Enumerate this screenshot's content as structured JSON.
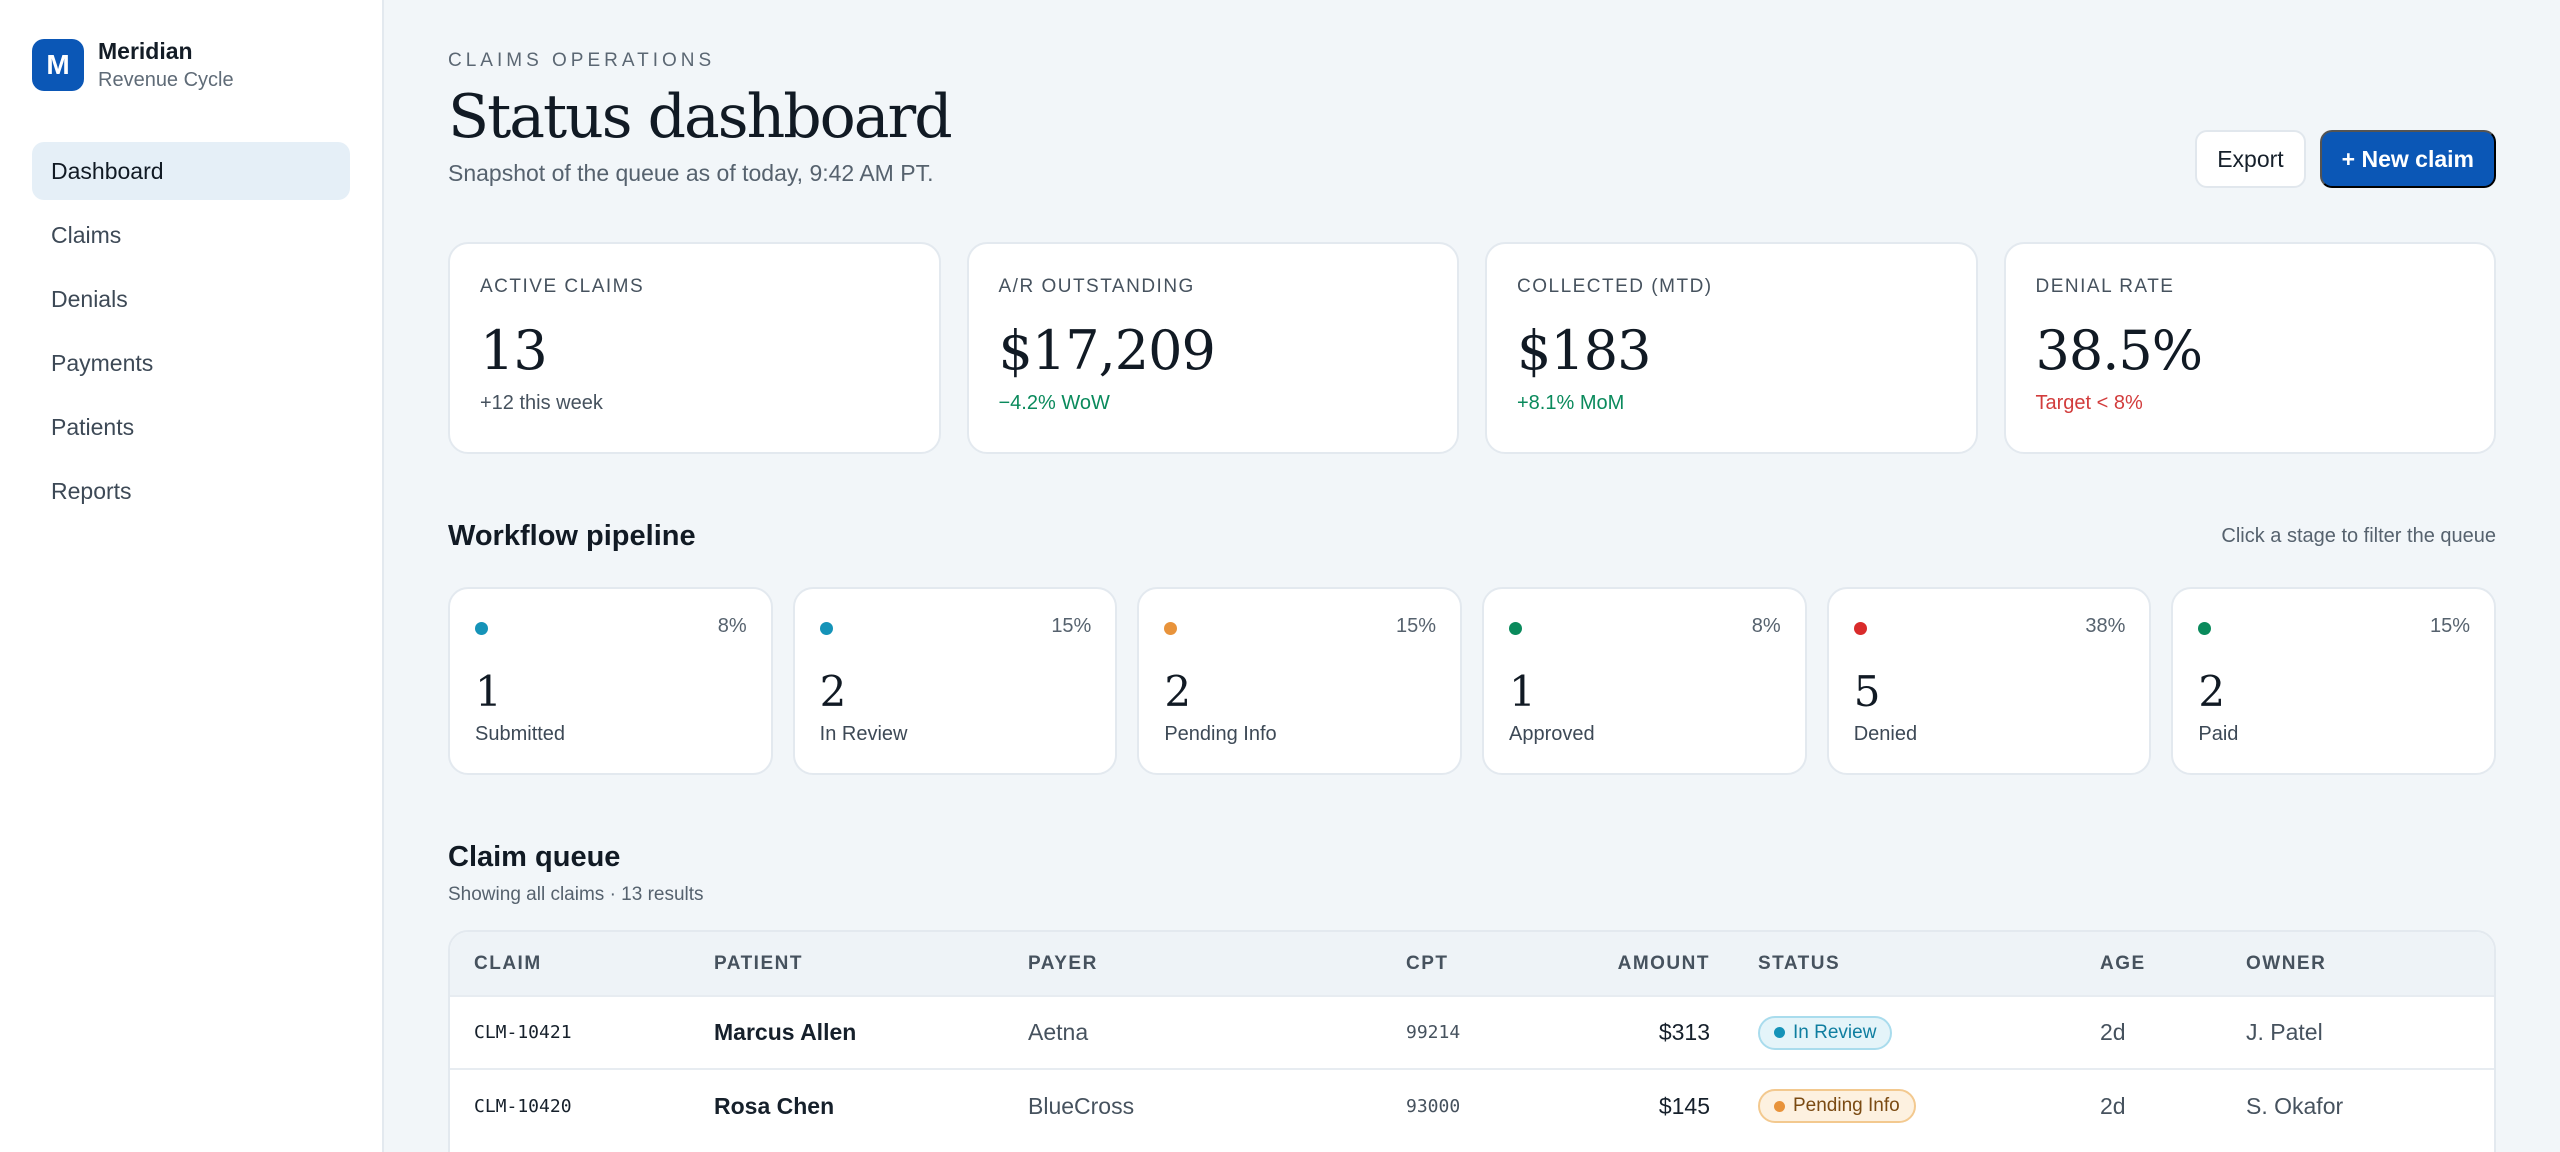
{
  "brand": {
    "initial": "M",
    "name": "Meridian",
    "subtitle": "Revenue Cycle"
  },
  "sidebar": {
    "items": [
      {
        "label": "Dashboard",
        "active": true
      },
      {
        "label": "Claims"
      },
      {
        "label": "Denials"
      },
      {
        "label": "Payments"
      },
      {
        "label": "Patients"
      },
      {
        "label": "Reports"
      }
    ]
  },
  "header": {
    "eyebrow": "CLAIMS OPERATIONS",
    "title": "Status dashboard",
    "subtitle": "Snapshot of the queue as of today, 9:42 AM PT.",
    "export_label": "Export",
    "new_claim_label": "+ New claim"
  },
  "kpis": [
    {
      "label": "ACTIVE CLAIMS",
      "value": "13",
      "delta": "+12 this week",
      "delta_color": "#46525e"
    },
    {
      "label": "A/R OUTSTANDING",
      "value": "$17,209",
      "delta": "−4.2% WoW",
      "delta_color": "#0a8a5c"
    },
    {
      "label": "COLLECTED (MTD)",
      "value": "$183",
      "delta": "+8.1% MoM",
      "delta_color": "#0a8a5c"
    },
    {
      "label": "DENIAL RATE",
      "value": "38.5%",
      "delta": "Target < 8%",
      "delta_color": "#d23c3c"
    }
  ],
  "pipeline": {
    "title": "Workflow pipeline",
    "hint": "Click a stage to filter the queue",
    "stages": [
      {
        "label": "Submitted",
        "count": "1",
        "pct": "8%",
        "color": "#1593b8"
      },
      {
        "label": "In Review",
        "count": "2",
        "pct": "15%",
        "color": "#1593b8"
      },
      {
        "label": "Pending Info",
        "count": "2",
        "pct": "15%",
        "color": "#e8933b"
      },
      {
        "label": "Approved",
        "count": "1",
        "pct": "8%",
        "color": "#0a8a5c"
      },
      {
        "label": "Denied",
        "count": "5",
        "pct": "38%",
        "color": "#d92b2b"
      },
      {
        "label": "Paid",
        "count": "2",
        "pct": "15%",
        "color": "#0a8a5c"
      }
    ]
  },
  "queue": {
    "title": "Claim queue",
    "subtitle": "Showing all claims · 13 results",
    "columns": [
      "CLAIM",
      "PATIENT",
      "PAYER",
      "CPT",
      "AMOUNT",
      "STATUS",
      "AGE",
      "OWNER"
    ],
    "rows": [
      {
        "claim": "CLM-10421",
        "patient": "Marcus Allen",
        "payer": "Aetna",
        "cpt": "99214",
        "amount": "$313",
        "status": "In Review",
        "age": "2d",
        "owner": "J. Patel",
        "status_bg": "#e4f4f9",
        "status_border": "#a9dced",
        "status_text": "#0f7ea0",
        "status_dot": "#1593b8"
      },
      {
        "claim": "CLM-10420",
        "patient": "Rosa Chen",
        "payer": "BlueCross",
        "cpt": "93000",
        "amount": "$145",
        "status": "Pending Info",
        "age": "2d",
        "owner": "S. Okafor",
        "status_bg": "#fdf1e0",
        "status_border": "#f3c98f",
        "status_text": "#7a4a12",
        "status_dot": "#e8933b"
      }
    ]
  }
}
